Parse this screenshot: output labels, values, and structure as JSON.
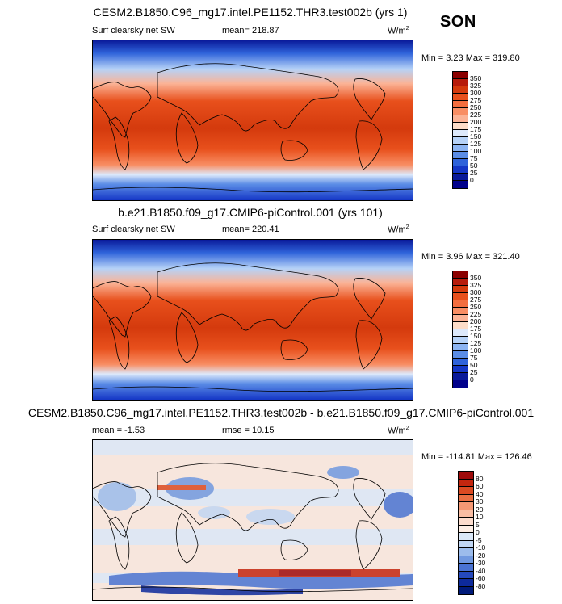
{
  "season": "SON",
  "panels": [
    {
      "title": "CESM2.B1850.C96_mg17.intel.PE1152.THR3.test002b (yrs 1)",
      "left_label": "Surf clearsky net SW",
      "center_label": "mean= 218.87",
      "units": "W/m",
      "units_sup": "2",
      "minmax": "Min =   3.23 Max = 319.80",
      "colorbar_labels": [
        "350",
        "325",
        "300",
        "275",
        "250",
        "225",
        "200",
        "175",
        "150",
        "125",
        "100",
        "75",
        "50",
        "25",
        "0"
      ],
      "colorbar_colors": [
        "#8b0000",
        "#b71c0c",
        "#d43a0d",
        "#e8501c",
        "#f36e3f",
        "#f88e64",
        "#fbb396",
        "#fdddc9",
        "#dde9fb",
        "#b6d2f7",
        "#8cb4f2",
        "#5b8de6",
        "#2f63da",
        "#1537c6",
        "#0a1a9a",
        "#00008b"
      ]
    },
    {
      "title": "b.e21.B1850.f09_g17.CMIP6-piControl.001 (yrs 101)",
      "left_label": "Surf clearsky net SW",
      "center_label": "mean= 220.41",
      "units": "W/m",
      "units_sup": "2",
      "minmax": "Min =   3.96 Max = 321.40",
      "colorbar_labels": [
        "350",
        "325",
        "300",
        "275",
        "250",
        "225",
        "200",
        "175",
        "150",
        "125",
        "100",
        "75",
        "50",
        "25",
        "0"
      ],
      "colorbar_colors": [
        "#8b0000",
        "#b71c0c",
        "#d43a0d",
        "#e8501c",
        "#f36e3f",
        "#f88e64",
        "#fbb396",
        "#fdddc9",
        "#dde9fb",
        "#b6d2f7",
        "#8cb4f2",
        "#5b8de6",
        "#2f63da",
        "#1537c6",
        "#0a1a9a",
        "#00008b"
      ]
    },
    {
      "title": "CESM2.B1850.C96_mg17.intel.PE1152.THR3.test002b - b.e21.B1850.f09_g17.CMIP6-piControl.001",
      "left_label": "mean =  -1.53",
      "center_label": "rmse =  10.15",
      "units": "W/m",
      "units_sup": "2",
      "minmax": "Min = -114.81 Max = 126.46",
      "colorbar_labels": [
        "80",
        "60",
        "40",
        "30",
        "20",
        "10",
        "5",
        "0",
        "-5",
        "-10",
        "-20",
        "-30",
        "-40",
        "-60",
        "-80"
      ],
      "colorbar_colors": [
        "#9e0a0a",
        "#c4260f",
        "#db4a22",
        "#ea6f43",
        "#f59874",
        "#f9bda3",
        "#fcdccd",
        "#fdeee5",
        "#dbe8f8",
        "#c1d6f3",
        "#9cbcec",
        "#7199e0",
        "#4a73d2",
        "#2549bc",
        "#0d2a9c",
        "#001a7a"
      ]
    }
  ]
}
